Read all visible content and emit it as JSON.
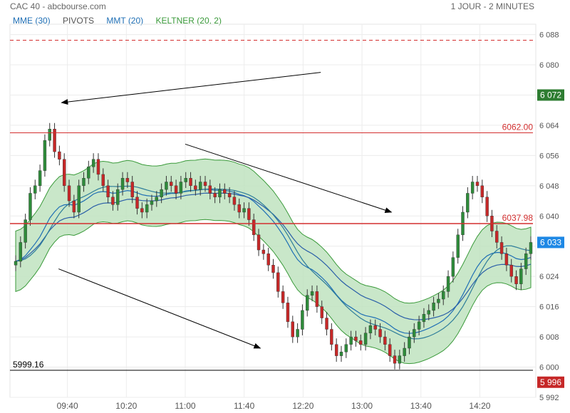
{
  "header": {
    "title": "CAC 40 - abcbourse.com",
    "period": "1 JOUR - 2 MINUTES"
  },
  "legend": [
    {
      "label": "MME (30)",
      "color": "#1f6fb5"
    },
    {
      "label": "PIVOTS",
      "color": "#555555"
    },
    {
      "label": "MMT (20)",
      "color": "#1f6fb5"
    },
    {
      "label": "KELTNER (20, 2)",
      "color": "#3a9a3a"
    }
  ],
  "chart_data": {
    "type": "candlestick",
    "ylim": [
      5991,
      6091
    ],
    "y_ticks": [
      6088,
      6080,
      6072,
      6064,
      6056,
      6048,
      6040,
      6032,
      6024,
      6016,
      6008,
      6000,
      5992
    ],
    "y_tick_labels": [
      "6 088",
      "6 080",
      "6 072",
      "6 064",
      "6 056",
      "6 048",
      "6 040",
      "",
      "6 024",
      "6 016",
      "6 008",
      "6 000",
      "5 992"
    ],
    "x_ticks": [
      "09:40",
      "10:20",
      "11:00",
      "11:40",
      "12:20",
      "13:00",
      "13:40",
      "14:20"
    ],
    "x_tick_minutes": [
      580,
      620,
      660,
      700,
      740,
      780,
      820,
      860
    ],
    "x_range_minutes": [
      541,
      898
    ],
    "close_series": [
      6028,
      6033,
      6039,
      6046,
      6048,
      6052,
      6060,
      6063,
      6057,
      6055,
      6048,
      6044,
      6041,
      6048,
      6050,
      6053,
      6055,
      6051,
      6048,
      6045,
      6043,
      6047,
      6050,
      6049,
      6045,
      6042,
      6041,
      6043,
      6044,
      6045,
      6047,
      6049,
      6048,
      6046,
      6049,
      6050,
      6048,
      6047,
      6049,
      6048,
      6046,
      6045,
      6047,
      6046,
      6045,
      6043,
      6041,
      6042,
      6039,
      6035,
      6031,
      6030,
      6027,
      6025,
      6020,
      6017,
      6012,
      6008,
      6010,
      6015,
      6019,
      6020,
      6016,
      6013,
      6010,
      6006,
      6003,
      6004,
      6006,
      6008,
      6007,
      6006,
      6009,
      6011,
      6010,
      6008,
      6006,
      6003,
      6001,
      6003,
      6005,
      6008,
      6010,
      6012,
      6014,
      6015,
      6017,
      6018,
      6020,
      6024,
      6029,
      6035,
      6041,
      6046,
      6049,
      6048,
      6045,
      6040,
      6036,
      6033,
      6030,
      6027,
      6024,
      6022,
      6026,
      6030,
      6033
    ],
    "horizontal_lines": [
      {
        "label": "",
        "value": 6086.5,
        "style": "red-dashed"
      },
      {
        "label": "6062.00",
        "value": 6062.0,
        "style": "red"
      },
      {
        "label": "6037.98",
        "value": 6037.98,
        "style": "red"
      },
      {
        "label": "5999.16",
        "value": 5999.16,
        "style": "black"
      }
    ],
    "price_badges": [
      {
        "label": "6 072",
        "value": 6072,
        "color": "#2e7d32"
      },
      {
        "label": "6 033",
        "value": 6033,
        "color": "#1e88e5"
      },
      {
        "label": "5 996",
        "value": 5996,
        "color": "#c62828"
      }
    ],
    "annotations": [
      {
        "type": "arrow",
        "from": [
          752,
          6078
        ],
        "to": [
          576,
          6070
        ]
      },
      {
        "type": "arrow",
        "from": [
          660,
          6059
        ],
        "to": [
          800,
          6041
        ]
      },
      {
        "type": "arrow",
        "from": [
          574,
          6026
        ],
        "to": [
          711,
          6005
        ]
      }
    ]
  }
}
